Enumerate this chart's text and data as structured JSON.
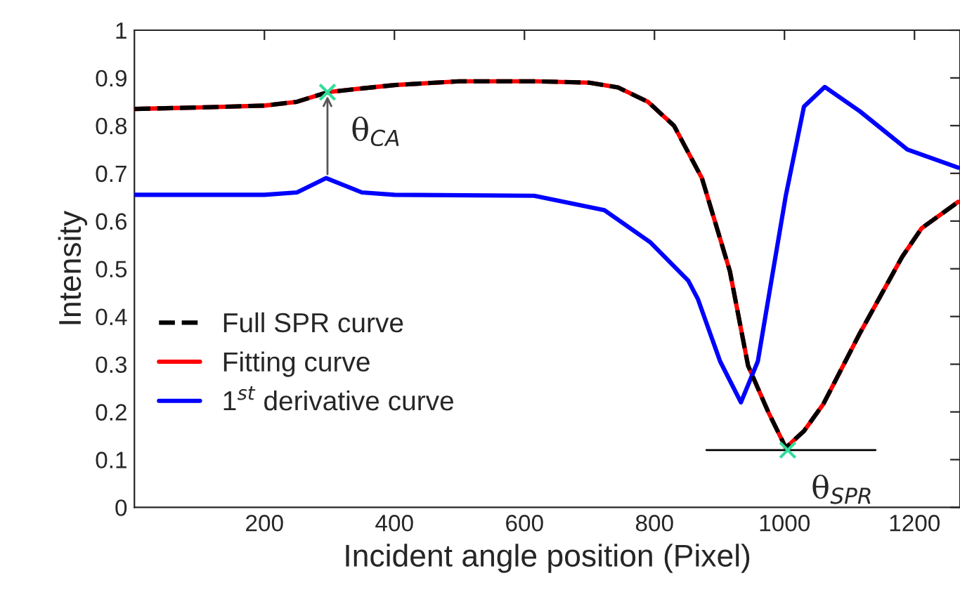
{
  "chart_data": {
    "type": "line",
    "xlabel": "Incident angle position (Pixel)",
    "ylabel": "Intensity",
    "xlim": [
      0,
      1270
    ],
    "xticks": [
      200,
      400,
      600,
      800,
      1000,
      1200
    ],
    "ylim": [
      0,
      1
    ],
    "yticks": [
      0,
      0.1,
      0.2,
      0.3,
      0.4,
      0.5,
      0.6,
      0.7,
      0.8,
      0.9,
      1
    ],
    "grid": false,
    "legend": "left",
    "series": [
      {
        "name": "Full SPR curve",
        "color": "#000000",
        "line_style": "dashed",
        "x": [
          0,
          100,
          200,
          250,
          297,
          350,
          400,
          500,
          615,
          700,
          744,
          790,
          830,
          873,
          916,
          944,
          975,
          1002,
          1030,
          1060,
          1116,
          1181,
          1211,
          1267
        ],
        "values": [
          0.835,
          0.838,
          0.842,
          0.85,
          0.87,
          0.878,
          0.885,
          0.893,
          0.893,
          0.89,
          0.88,
          0.85,
          0.8,
          0.69,
          0.495,
          0.297,
          0.2,
          0.125,
          0.16,
          0.217,
          0.365,
          0.525,
          0.585,
          0.64
        ]
      },
      {
        "name": "Fitting curve",
        "color": "#ff0000",
        "line_style": "solid",
        "x": [
          0,
          100,
          200,
          250,
          297,
          350,
          400,
          500,
          615,
          700,
          744,
          790,
          830,
          873,
          916,
          944,
          975,
          1002,
          1030,
          1060,
          1116,
          1181,
          1211,
          1267
        ],
        "values": [
          0.835,
          0.838,
          0.842,
          0.85,
          0.87,
          0.878,
          0.885,
          0.893,
          0.893,
          0.89,
          0.88,
          0.85,
          0.8,
          0.69,
          0.495,
          0.297,
          0.2,
          0.125,
          0.16,
          0.217,
          0.365,
          0.525,
          0.585,
          0.64
        ]
      },
      {
        "name": "1$^{st}$ derivative curve",
        "color": "#0000ff",
        "line_style": "solid",
        "x": [
          0,
          200,
          250,
          295,
          350,
          400,
          615,
          723,
          794,
          852,
          867,
          901,
          933,
          959,
          981,
          1002,
          1030,
          1062,
          1116,
          1189,
          1267
        ],
        "values": [
          0.655,
          0.655,
          0.66,
          0.69,
          0.66,
          0.655,
          0.653,
          0.623,
          0.555,
          0.475,
          0.436,
          0.306,
          0.22,
          0.306,
          0.484,
          0.653,
          0.84,
          0.881,
          0.83,
          0.75,
          0.712
        ]
      },
      {
        "type": "line",
        "color": "#000000",
        "line_style": "solid",
        "x": [
          880,
          1140
        ],
        "values": [
          0.12,
          0.12
        ]
      },
      {
        "type": "scatter",
        "color": "#33dd99",
        "marker": "cross",
        "x": [
          297,
          1005
        ],
        "values": [
          0.87,
          0.12
        ]
      }
    ],
    "annotations": [
      {
        "text": "θ$_{CA}$",
        "x": 297,
        "y": 0.87
      },
      {
        "text": "θ$_{SPR}$",
        "x": 1005,
        "y": 0.12
      }
    ]
  }
}
